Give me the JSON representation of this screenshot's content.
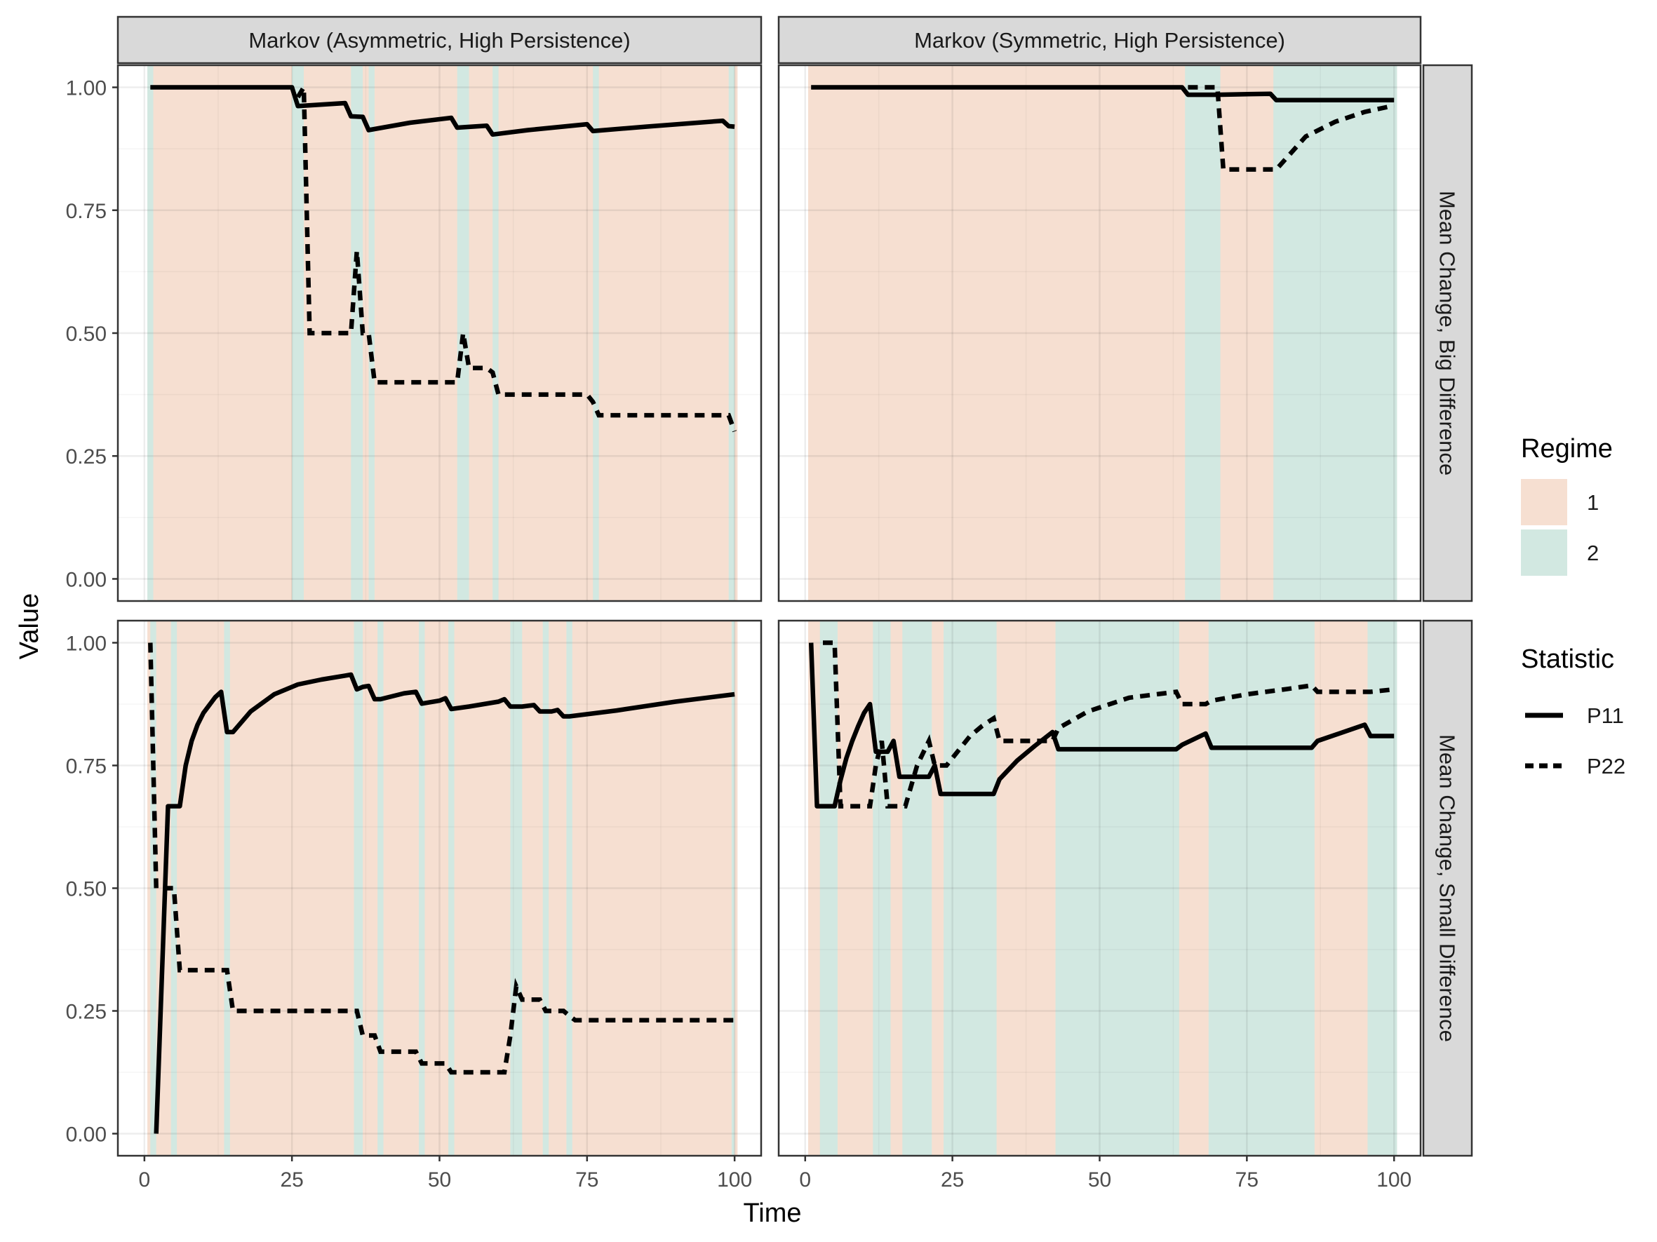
{
  "chart_data": {
    "type": "line",
    "xlabel": "Time",
    "ylabel": "Value",
    "xlim": [
      0,
      100
    ],
    "ylim": [
      0,
      1
    ],
    "x_ticks": [
      0,
      25,
      50,
      75,
      100
    ],
    "y_ticks": [
      0,
      0.25,
      0.5,
      0.75,
      1
    ],
    "y_tick_labels": [
      "0.00",
      "0.25",
      "0.50",
      "0.75",
      "1.00"
    ],
    "grid": true,
    "legend_position": "right",
    "column_strips": [
      "Markov (Asymmetric, High Persistence)",
      "Markov (Symmetric, High Persistence)"
    ],
    "row_strips": [
      "Mean Change, Big Difference",
      "Mean Change, Small Difference"
    ],
    "regime_legend": {
      "title": "Regime",
      "entries": [
        {
          "label": "1",
          "color": "#f6dfd1"
        },
        {
          "label": "2",
          "color": "#d2e8e1"
        }
      ]
    },
    "statistic_legend": {
      "title": "Statistic",
      "entries": [
        {
          "label": "P11",
          "linetype": "solid"
        },
        {
          "label": "P22",
          "linetype": "dashed"
        }
      ]
    },
    "panels": [
      {
        "column": 0,
        "row": 0,
        "regime2_intervals": [
          [
            0.5,
            1.5
          ],
          [
            25,
            27
          ],
          [
            35,
            37
          ],
          [
            38,
            39
          ],
          [
            53,
            55
          ],
          [
            59,
            60
          ],
          [
            76,
            77
          ],
          [
            99,
            100
          ]
        ],
        "series": [
          {
            "name": "P11",
            "linetype": "solid",
            "x": [
              1,
              25,
              26,
              30,
              34,
              35,
              37,
              38,
              45,
              52,
              53,
              58,
              59,
              65,
              75,
              76,
              85,
              98,
              99,
              100
            ],
            "y": [
              1,
              1,
              0.962,
              0.965,
              0.968,
              0.941,
              0.94,
              0.913,
              0.928,
              0.938,
              0.918,
              0.922,
              0.904,
              0.913,
              0.925,
              0.911,
              0.92,
              0.932,
              0.921,
              0.92
            ]
          },
          {
            "name": "P22",
            "linetype": "dashed",
            "x": [
              26,
              27,
              28,
              35,
              36,
              37,
              38,
              39,
              53,
              54,
              55,
              58,
              59,
              60,
              75,
              76,
              77,
              99,
              100
            ],
            "y": [
              0.98,
              1,
              0.5,
              0.5,
              0.667,
              0.5,
              0.5,
              0.4,
              0.4,
              0.5,
              0.429,
              0.429,
              0.42,
              0.375,
              0.375,
              0.36,
              0.333,
              0.333,
              0.3
            ]
          }
        ]
      },
      {
        "column": 1,
        "row": 0,
        "regime2_intervals": [
          [
            64.5,
            70.5
          ],
          [
            79.5,
            100.5
          ]
        ],
        "series": [
          {
            "name": "P11",
            "linetype": "solid",
            "x": [
              1,
              64,
              65,
              70,
              79,
              80,
              100
            ],
            "y": [
              1,
              1,
              0.985,
              0.985,
              0.987,
              0.974,
              0.974
            ]
          },
          {
            "name": "P22",
            "linetype": "dashed",
            "x": [
              65,
              70,
              71,
              79,
              80,
              85,
              90,
              95,
              100
            ],
            "y": [
              1,
              1,
              0.833,
              0.833,
              0.833,
              0.9,
              0.93,
              0.95,
              0.963
            ]
          }
        ]
      },
      {
        "column": 0,
        "row": 1,
        "regime2_intervals": [
          [
            1,
            2
          ],
          [
            4.5,
            5.5
          ],
          [
            13.5,
            14.5
          ],
          [
            35.5,
            37
          ],
          [
            39.5,
            40.5
          ],
          [
            46.5,
            47.5
          ],
          [
            51.5,
            52.5
          ],
          [
            62,
            64
          ],
          [
            67.5,
            68.5
          ],
          [
            71.5,
            72.5
          ],
          [
            99.5,
            100
          ]
        ],
        "series": [
          {
            "name": "P11",
            "linetype": "solid",
            "x": [
              2,
              4,
              5,
              6,
              7,
              8,
              9,
              10,
              12,
              13,
              14,
              15,
              18,
              22,
              26,
              30,
              34,
              35,
              36,
              37,
              38,
              39,
              40,
              44,
              46,
              47,
              50,
              51,
              52,
              55,
              60,
              61,
              62,
              64,
              66,
              67,
              69,
              70,
              71,
              72,
              80,
              90,
              100
            ],
            "y": [
              0,
              0.667,
              0.667,
              0.667,
              0.75,
              0.8,
              0.833,
              0.857,
              0.889,
              0.9,
              0.818,
              0.818,
              0.86,
              0.895,
              0.915,
              0.925,
              0.933,
              0.935,
              0.905,
              0.91,
              0.912,
              0.885,
              0.885,
              0.897,
              0.9,
              0.876,
              0.882,
              0.887,
              0.865,
              0.87,
              0.88,
              0.885,
              0.87,
              0.87,
              0.873,
              0.86,
              0.86,
              0.863,
              0.85,
              0.85,
              0.862,
              0.88,
              0.895
            ]
          },
          {
            "name": "P22",
            "linetype": "dashed",
            "x": [
              1,
              2,
              3,
              4,
              5,
              6,
              7,
              13,
              14,
              15,
              36,
              37,
              38,
              39,
              40,
              41,
              46,
              47,
              48,
              51,
              52,
              53,
              61,
              62,
              63,
              64,
              67,
              68,
              71,
              72,
              73,
              100
            ],
            "y": [
              1,
              0.5,
              0.5,
              0.5,
              0.5,
              0.333,
              0.333,
              0.333,
              0.333,
              0.25,
              0.25,
              0.2,
              0.2,
              0.2,
              0.167,
              0.167,
              0.167,
              0.143,
              0.143,
              0.143,
              0.125,
              0.125,
              0.125,
              0.2,
              0.3,
              0.273,
              0.273,
              0.25,
              0.25,
              0.24,
              0.231,
              0.231
            ]
          }
        ]
      },
      {
        "column": 1,
        "row": 1,
        "regime2_intervals": [
          [
            2.5,
            5.5
          ],
          [
            11.5,
            14.5
          ],
          [
            16.5,
            21.5
          ],
          [
            23.5,
            32.5
          ],
          [
            42.5,
            63.5
          ],
          [
            68.5,
            86.5
          ],
          [
            95.5,
            100.5
          ]
        ],
        "series": [
          {
            "name": "P11",
            "linetype": "solid",
            "x": [
              1,
              2,
              3,
              5,
              6,
              7,
              8,
              9,
              10,
              11,
              12,
              13,
              14,
              15,
              16,
              17,
              21,
              22,
              23,
              24,
              32,
              33,
              36,
              39,
              42,
              43,
              63,
              64,
              68,
              69,
              86,
              87,
              95,
              96,
              100
            ],
            "y": [
              1,
              0.667,
              0.667,
              0.667,
              0.72,
              0.765,
              0.8,
              0.83,
              0.857,
              0.875,
              0.778,
              0.778,
              0.778,
              0.8,
              0.727,
              0.727,
              0.727,
              0.75,
              0.692,
              0.692,
              0.692,
              0.722,
              0.76,
              0.79,
              0.818,
              0.783,
              0.783,
              0.792,
              0.815,
              0.786,
              0.786,
              0.8,
              0.833,
              0.81,
              0.81
            ]
          },
          {
            "name": "P22",
            "linetype": "dashed",
            "x": [
              3,
              4,
              5,
              6,
              11,
              12,
              13,
              14,
              17,
              19,
              21,
              22,
              24,
              26,
              28,
              30,
              32,
              33,
              42,
              43,
              48,
              55,
              63,
              64,
              68,
              69,
              75,
              82,
              86,
              87,
              95,
              96,
              100
            ],
            "y": [
              1,
              1,
              1,
              0.667,
              0.667,
              0.75,
              0.8,
              0.667,
              0.667,
              0.75,
              0.8,
              0.75,
              0.75,
              0.78,
              0.81,
              0.83,
              0.846,
              0.8,
              0.8,
              0.826,
              0.86,
              0.888,
              0.9,
              0.875,
              0.875,
              0.882,
              0.895,
              0.906,
              0.913,
              0.9,
              0.9,
              0.9,
              0.905
            ]
          }
        ]
      }
    ]
  }
}
